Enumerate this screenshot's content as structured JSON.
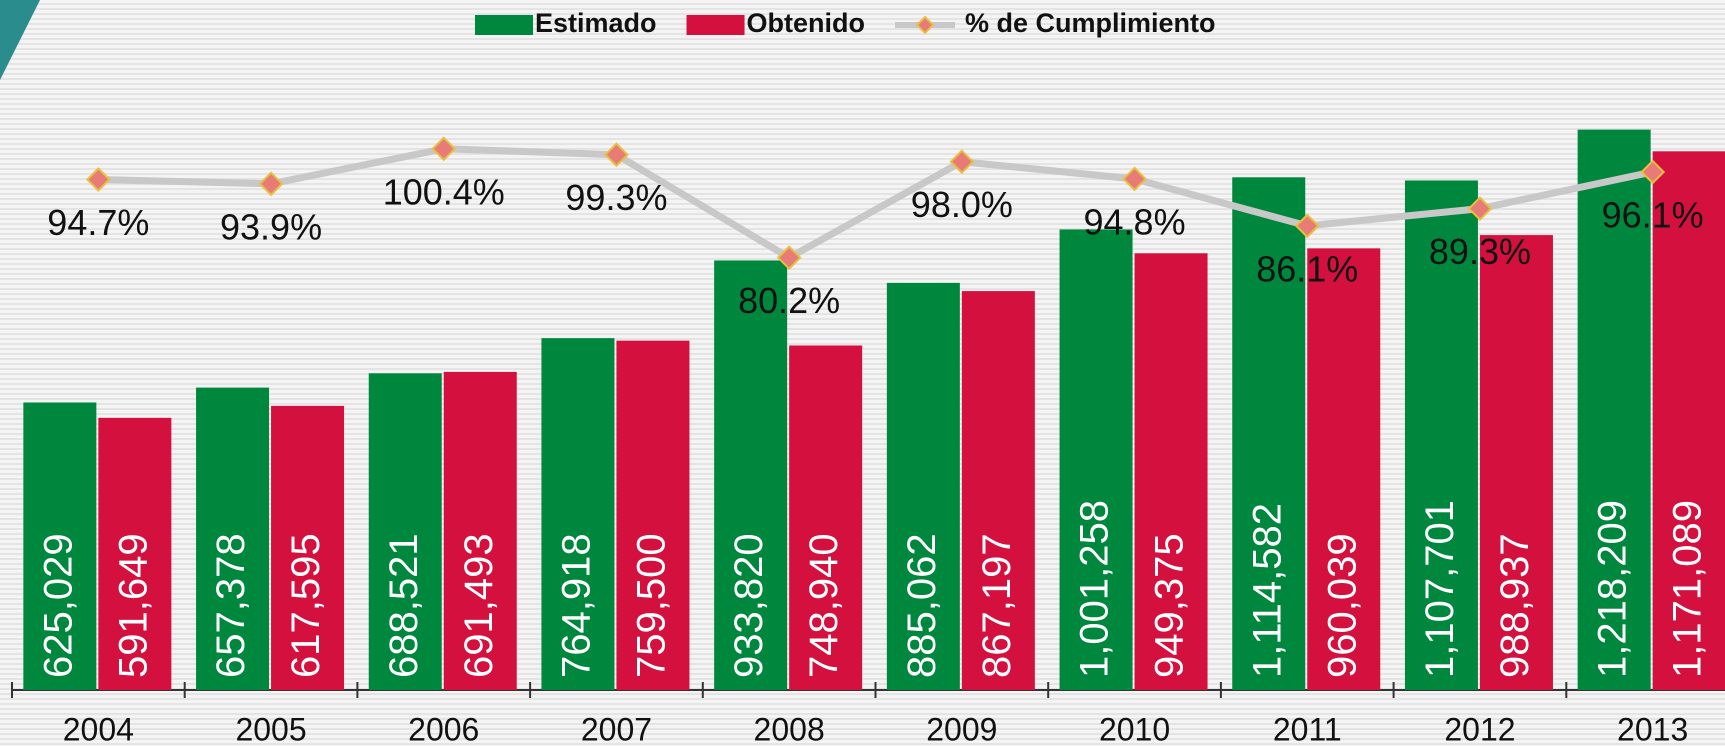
{
  "chart_data": {
    "type": "bar",
    "categories": [
      "2004",
      "2005",
      "2006",
      "2007",
      "2008",
      "2009",
      "2010",
      "2011",
      "2012",
      "2013"
    ],
    "series": [
      {
        "name": "Estimado",
        "color": "#00873e",
        "values": [
          625029,
          657378,
          688521,
          764918,
          933820,
          885062,
          1001258,
          1114582,
          1107701,
          1218209
        ],
        "value_labels": [
          "625,029",
          "657,378",
          "688,521",
          "764,918",
          "933,820",
          "885,062",
          "1,001,258",
          "1,114,582",
          "1,107,701",
          "1,218,209"
        ]
      },
      {
        "name": "Obtenido",
        "color": "#d4103f",
        "values": [
          591649,
          617595,
          691493,
          759500,
          748940,
          867197,
          949375,
          960039,
          988937,
          1171089
        ],
        "value_labels": [
          "591,649",
          "617,595",
          "691,493",
          "759,500",
          "748,940",
          "867,197",
          "949,375",
          "960,039",
          "988,937",
          "1,171,089"
        ]
      },
      {
        "name": "% de Cumplimiento",
        "type": "line",
        "axis": "y2",
        "color": "#c8c8c8",
        "marker_color": "#e87a78",
        "values": [
          94.7,
          93.9,
          100.4,
          99.3,
          80.2,
          98.0,
          94.8,
          86.1,
          89.3,
          96.1
        ],
        "value_labels": [
          "94.7%",
          "93.9%",
          "100.4%",
          "99.3%",
          "80.2%",
          "98.0%",
          "94.8%",
          "86.1%",
          "89.3%",
          "96.1%"
        ]
      }
    ],
    "ylim": [
      0,
      1500000
    ],
    "y2lim": [
      0,
      128
    ],
    "legend": "top"
  }
}
